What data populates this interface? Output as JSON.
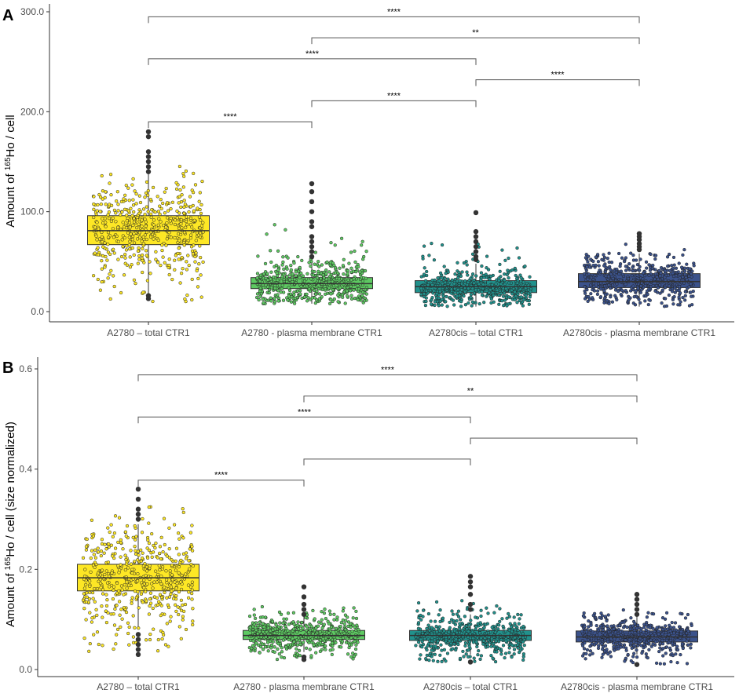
{
  "chart_data": [
    {
      "panel": "A",
      "type": "box",
      "ylabel_prefix": "Amount of ",
      "ylabel_sup": "165",
      "ylabel_suffix": "Ho / cell",
      "categories": [
        "A2780 – total CTR1",
        "A2780 - plasma membrane CTR1",
        "A2780cis – total CTR1",
        "A2780cis - plasma membrane CTR1"
      ],
      "ylim": [
        0,
        300
      ],
      "yticks": [
        0,
        100,
        200,
        300
      ],
      "ytick_labels": [
        "0.0",
        "100.0",
        "200.0",
        "300.0"
      ],
      "colors": [
        "#fde725",
        "#5ec962",
        "#21918c",
        "#3b528b"
      ],
      "boxes": [
        {
          "q1": 67,
          "median": 81,
          "q3": 96,
          "wlow": 16,
          "whigh": 138,
          "outliers": [
            13,
            16,
            175,
            180,
            160,
            155,
            150,
            145,
            140
          ],
          "jitter_min": 10,
          "jitter_max": 180,
          "center": 82,
          "spread": 22
        },
        {
          "q1": 23,
          "median": 28,
          "q3": 34,
          "wlow": 8,
          "whigh": 50,
          "outliers": [
            55,
            60,
            65,
            70,
            75,
            85,
            90,
            100,
            110,
            120,
            128
          ],
          "jitter_min": 8,
          "jitter_max": 128,
          "center": 29,
          "spread": 11
        },
        {
          "q1": 19,
          "median": 25,
          "q3": 31,
          "wlow": 5,
          "whigh": 48,
          "outliers": [
            52,
            55,
            60,
            65,
            70,
            75,
            80,
            99
          ],
          "jitter_min": 5,
          "jitter_max": 99,
          "center": 25,
          "spread": 10
        },
        {
          "q1": 24,
          "median": 30,
          "q3": 38,
          "wlow": 5,
          "whigh": 58,
          "outliers": [
            62,
            65,
            68,
            72,
            75,
            78
          ],
          "jitter_min": 5,
          "jitter_max": 78,
          "center": 31,
          "spread": 11
        }
      ],
      "brackets": [
        {
          "from": 0,
          "to": 3,
          "y": 295,
          "label": "****"
        },
        {
          "from": 1,
          "to": 3,
          "y": 274,
          "label": "**"
        },
        {
          "from": 0,
          "to": 2,
          "y": 253,
          "label": "****"
        },
        {
          "from": 2,
          "to": 3,
          "y": 232,
          "label": "****"
        },
        {
          "from": 1,
          "to": 2,
          "y": 211,
          "label": "****"
        },
        {
          "from": 0,
          "to": 1,
          "y": 190,
          "label": "****"
        }
      ]
    },
    {
      "panel": "B",
      "type": "box",
      "ylabel_prefix": "Amount of ",
      "ylabel_sup": "165",
      "ylabel_suffix": "Ho / cell  (size normalized)",
      "categories": [
        "A2780 – total CTR1",
        "A2780 - plasma membrane CTR1",
        "A2780cis – total CTR1",
        "A2780cis - plasma membrane CTR1"
      ],
      "ylim": [
        0,
        0.6
      ],
      "yticks": [
        0,
        0.2,
        0.4,
        0.6
      ],
      "ytick_labels": [
        "0.0",
        "0.2",
        "0.4",
        "0.6"
      ],
      "colors": [
        "#fde725",
        "#5ec962",
        "#21918c",
        "#3b528b"
      ],
      "boxes": [
        {
          "q1": 0.157,
          "median": 0.183,
          "q3": 0.21,
          "wlow": 0.08,
          "whigh": 0.29,
          "outliers": [
            0.03,
            0.04,
            0.05,
            0.06,
            0.07,
            0.3,
            0.31,
            0.32,
            0.34,
            0.36
          ],
          "jitter_min": 0.03,
          "jitter_max": 0.36,
          "center": 0.185,
          "spread": 0.05
        },
        {
          "q1": 0.06,
          "median": 0.068,
          "q3": 0.078,
          "wlow": 0.035,
          "whigh": 0.105,
          "outliers": [
            0.02,
            0.025,
            0.11,
            0.12,
            0.13,
            0.145,
            0.165
          ],
          "jitter_min": 0.02,
          "jitter_max": 0.165,
          "center": 0.07,
          "spread": 0.018
        },
        {
          "q1": 0.058,
          "median": 0.068,
          "q3": 0.078,
          "wlow": 0.03,
          "whigh": 0.11,
          "outliers": [
            0.015,
            0.12,
            0.13,
            0.15,
            0.165,
            0.175,
            0.186
          ],
          "jitter_min": 0.015,
          "jitter_max": 0.186,
          "center": 0.069,
          "spread": 0.02
        },
        {
          "q1": 0.055,
          "median": 0.065,
          "q3": 0.077,
          "wlow": 0.03,
          "whigh": 0.105,
          "outliers": [
            0.01,
            0.11,
            0.12,
            0.13,
            0.14,
            0.15
          ],
          "jitter_min": 0.01,
          "jitter_max": 0.15,
          "center": 0.066,
          "spread": 0.016
        }
      ],
      "brackets": [
        {
          "from": 0,
          "to": 3,
          "y": 0.588,
          "label": "****"
        },
        {
          "from": 1,
          "to": 3,
          "y": 0.546,
          "label": "**"
        },
        {
          "from": 0,
          "to": 2,
          "y": 0.504,
          "label": "****"
        },
        {
          "from": 2,
          "to": 3,
          "y": 0.462,
          "label": ""
        },
        {
          "from": 1,
          "to": 2,
          "y": 0.42,
          "label": ""
        },
        {
          "from": 0,
          "to": 1,
          "y": 0.378,
          "label": "****"
        }
      ]
    }
  ]
}
